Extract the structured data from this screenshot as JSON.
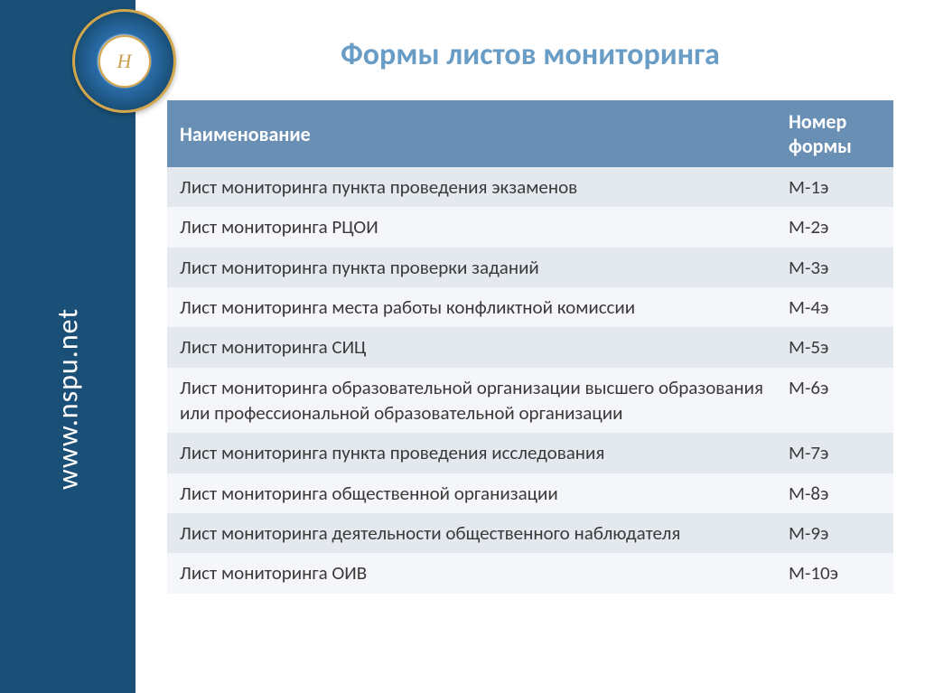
{
  "sidebar": {
    "url_text": "www.nspu.net",
    "background_color": "#1a5078",
    "text_color": "#ffffff"
  },
  "logo": {
    "monogram": "Н",
    "border_color": "#d4a74c"
  },
  "title": {
    "text": "Формы  листов  мониторинга",
    "color": "#6a9dc6",
    "fontsize": 34
  },
  "table": {
    "header_bg": "#6a8fb5",
    "header_color": "#ffffff",
    "row_odd_bg": "#e4e9ef",
    "row_even_bg": "#f4f6f9",
    "columns": [
      {
        "label": "Наименование"
      },
      {
        "label": "Номер формы"
      }
    ],
    "rows": [
      {
        "name": "Лист мониторинга пункта проведения экзаменов",
        "number": "М-1э"
      },
      {
        "name": "Лист мониторинга РЦОИ",
        "number": "М-2э"
      },
      {
        "name": "Лист мониторинга пункта проверки заданий",
        "number": "М-3э"
      },
      {
        "name": "Лист мониторинга места работы конфликтной комиссии",
        "number": "М-4э"
      },
      {
        "name": "Лист мониторинга СИЦ",
        "number": "М-5э"
      },
      {
        "name": "Лист мониторинга образовательной организации высшего образования или профессиональной образовательной организации",
        "number": "М-6э"
      },
      {
        "name": "Лист мониторинга пункта проведения исследования",
        "number": "М-7э"
      },
      {
        "name": "Лист мониторинга общественной организации",
        "number": "М-8э"
      },
      {
        "name": "Лист мониторинга деятельности общественного наблюдателя",
        "number": "М-9э"
      },
      {
        "name": "Лист мониторинга ОИВ",
        "number": "М-10э"
      }
    ]
  }
}
